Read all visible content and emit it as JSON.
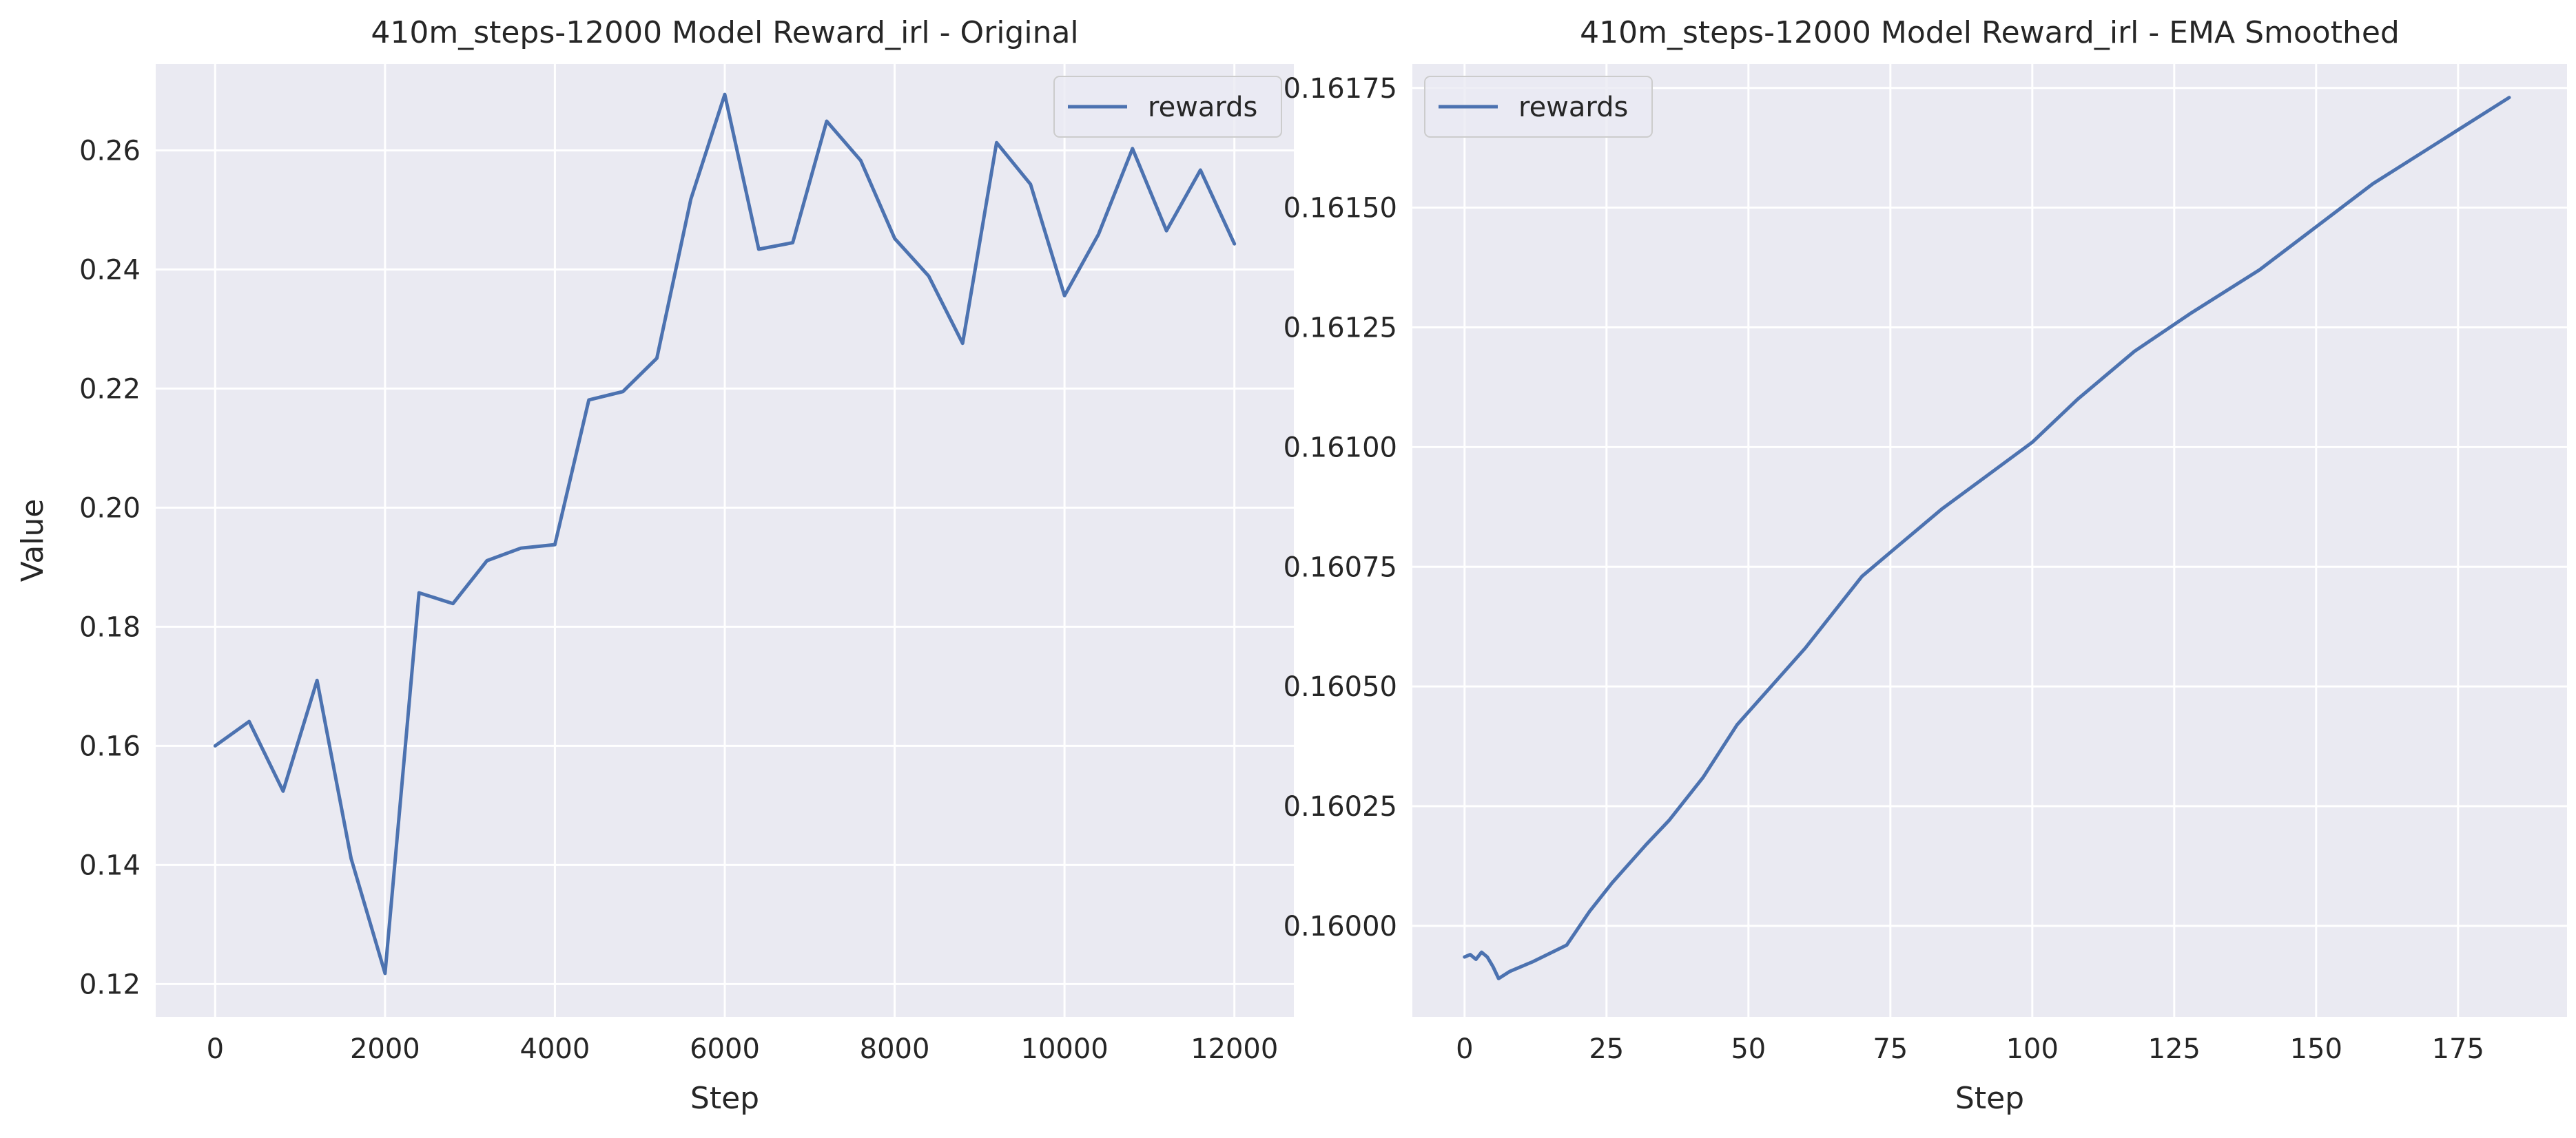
{
  "colors": {
    "series": "#4c72b0",
    "panel": "#eaeaf2",
    "grid": "#ffffff",
    "text": "#262626"
  },
  "chart_data": [
    {
      "type": "line",
      "title": "410m_steps-12000 Model Reward_irl - Original",
      "xlabel": "Step",
      "ylabel": "Value",
      "xlim": [
        -700,
        12700
      ],
      "ylim": [
        0.1145,
        0.2745
      ],
      "xticks": [
        0,
        2000,
        4000,
        6000,
        8000,
        10000,
        12000
      ],
      "xtick_labels": [
        "0",
        "2000",
        "4000",
        "6000",
        "8000",
        "10000",
        "12000"
      ],
      "yticks": [
        0.12,
        0.14,
        0.16,
        0.18,
        0.2,
        0.22,
        0.24,
        0.26
      ],
      "ytick_labels": [
        "0.12",
        "0.14",
        "0.16",
        "0.18",
        "0.20",
        "0.22",
        "0.24",
        "0.26"
      ],
      "grid": true,
      "legend": {
        "placement": "top-right",
        "entries": [
          "rewards"
        ]
      },
      "series": [
        {
          "name": "rewards",
          "x": [
            0,
            400,
            800,
            1200,
            1600,
            2000,
            2400,
            2800,
            3200,
            3600,
            4000,
            4400,
            4800,
            5200,
            5600,
            6000,
            6400,
            6800,
            7200,
            7600,
            8000,
            8400,
            8800,
            9200,
            9600,
            10000,
            10400,
            10800,
            11200,
            11600,
            12000
          ],
          "y": [
            0.16,
            0.1641,
            0.1524,
            0.171,
            0.1411,
            0.1218,
            0.1857,
            0.1839,
            0.1911,
            0.1932,
            0.1938,
            0.2181,
            0.2195,
            0.2251,
            0.2518,
            0.2694,
            0.2434,
            0.2445,
            0.2649,
            0.2583,
            0.2452,
            0.2389,
            0.2276,
            0.2613,
            0.2543,
            0.2356,
            0.2459,
            0.2603,
            0.2465,
            0.2567,
            0.2443
          ]
        }
      ]
    },
    {
      "type": "line",
      "title": "410m_steps-12000 Model Reward_irl - EMA Smoothed",
      "xlabel": "Step",
      "ylabel": "",
      "xlim": [
        -9.2,
        194.2
      ],
      "ylim": [
        0.15981,
        0.1618
      ],
      "xticks": [
        0,
        25,
        50,
        75,
        100,
        125,
        150,
        175
      ],
      "xtick_labels": [
        "0",
        "25",
        "50",
        "75",
        "100",
        "125",
        "150",
        "175"
      ],
      "yticks": [
        0.16,
        0.16025,
        0.1605,
        0.16075,
        0.161,
        0.16125,
        0.1615,
        0.16175
      ],
      "ytick_labels": [
        "0.16000",
        "0.16025",
        "0.16050",
        "0.16075",
        "0.16100",
        "0.16125",
        "0.16150",
        "0.16175"
      ],
      "grid": true,
      "legend": {
        "placement": "top-left",
        "entries": [
          "rewards"
        ]
      },
      "series": [
        {
          "name": "rewards",
          "x": [
            0,
            1,
            2,
            3,
            4,
            5,
            6,
            8,
            12,
            18,
            22,
            26,
            32,
            36,
            42,
            48,
            54,
            60,
            66,
            70,
            76,
            84,
            92,
            100,
            108,
            118,
            128,
            140,
            150,
            160,
            172,
            184
          ],
          "y": [
            0.159935,
            0.15994,
            0.15993,
            0.159945,
            0.159935,
            0.159915,
            0.15989,
            0.159905,
            0.159925,
            0.15996,
            0.16003,
            0.16009,
            0.16017,
            0.16022,
            0.16031,
            0.16042,
            0.1605,
            0.16058,
            0.16067,
            0.16073,
            0.16079,
            0.16087,
            0.16094,
            0.16101,
            0.1611,
            0.1612,
            0.16128,
            0.16137,
            0.16146,
            0.16155,
            0.16164,
            0.16173
          ]
        }
      ]
    }
  ]
}
